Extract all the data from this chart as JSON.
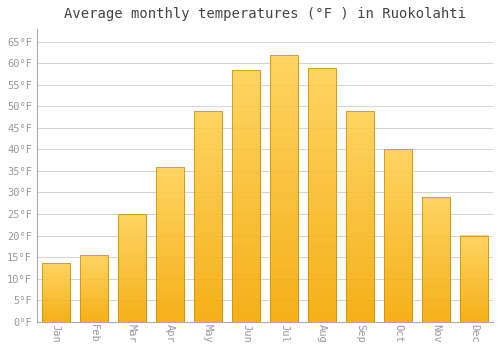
{
  "title": "Average monthly temperatures (°F ) in Ruokolahti",
  "months": [
    "Jan",
    "Feb",
    "Mar",
    "Apr",
    "May",
    "Jun",
    "Jul",
    "Aug",
    "Sep",
    "Oct",
    "Nov",
    "Dec"
  ],
  "values": [
    13.5,
    15.5,
    25.0,
    36.0,
    49.0,
    58.5,
    62.0,
    59.0,
    49.0,
    40.0,
    29.0,
    20.0
  ],
  "bar_color": "#FFC020",
  "bar_edge_color": "#CC8800",
  "background_color": "#FFFFFF",
  "grid_color": "#CCCCCC",
  "text_color": "#999999",
  "yticks": [
    0,
    5,
    10,
    15,
    20,
    25,
    30,
    35,
    40,
    45,
    50,
    55,
    60,
    65
  ],
  "ylim": [
    0,
    68
  ],
  "title_fontsize": 10,
  "tick_fontsize": 7.5,
  "font_family": "monospace"
}
